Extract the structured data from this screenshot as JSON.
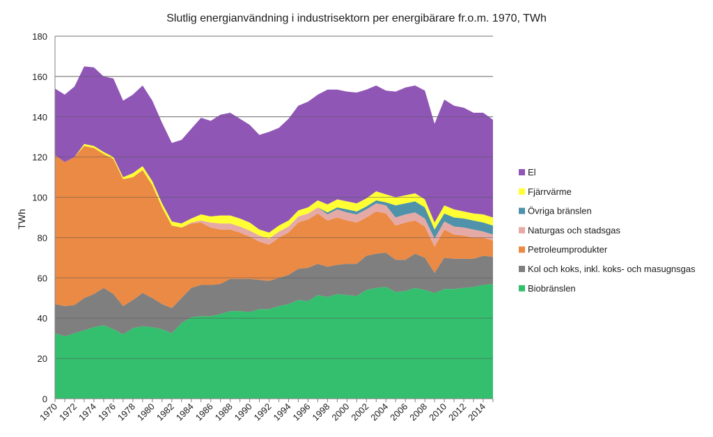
{
  "chart_data": {
    "type": "area",
    "stacked": true,
    "title": "Slutlig energianvändning i industrisektorn per energibärare fr.o.m. 1970, TWh",
    "xlabel": "",
    "ylabel": "TWh",
    "ylim": [
      0,
      180
    ],
    "yticks": [
      0,
      20,
      40,
      60,
      80,
      100,
      120,
      140,
      160,
      180
    ],
    "grid": true,
    "legend_position": "right",
    "x": [
      1970,
      1971,
      1972,
      1973,
      1974,
      1975,
      1976,
      1977,
      1978,
      1979,
      1980,
      1981,
      1982,
      1983,
      1984,
      1985,
      1986,
      1987,
      1988,
      1989,
      1990,
      1991,
      1992,
      1993,
      1994,
      1995,
      1996,
      1997,
      1998,
      1999,
      2000,
      2001,
      2002,
      2003,
      2004,
      2005,
      2006,
      2007,
      2008,
      2009,
      2010,
      2011,
      2012,
      2013,
      2014,
      2015
    ],
    "xtick_labels": [
      "1970",
      "1972",
      "1974",
      "1976",
      "1978",
      "1980",
      "1982",
      "1984",
      "1986",
      "1988",
      "1990",
      "1992",
      "1994",
      "1996",
      "1998",
      "2000",
      "2002",
      "2004",
      "2006",
      "2008",
      "2010",
      "2012",
      "2014"
    ],
    "series": [
      {
        "name": "Biobränslen",
        "color": "#33bf6e",
        "values": [
          32.5,
          31,
          32.5,
          34,
          35.5,
          36.5,
          34.5,
          32,
          35,
          36,
          35.5,
          34.5,
          32.5,
          37.5,
          40.5,
          41,
          41,
          42,
          43.5,
          43.5,
          43,
          44.5,
          44.5,
          46,
          47,
          49,
          48.5,
          51.5,
          50.5,
          52,
          51.5,
          51,
          54,
          55,
          55.5,
          53,
          53.5,
          55,
          54,
          52.5,
          54.5,
          54.5,
          55,
          55.5,
          56.5,
          57
        ]
      },
      {
        "name": "Kol och koks, inkl. koks- och masugnsgas",
        "color": "#7f7f7f",
        "values": [
          14.5,
          15,
          14,
          16,
          16.5,
          18.5,
          17.5,
          14,
          14,
          16.5,
          14.5,
          12.5,
          12.5,
          12.5,
          14.5,
          15.5,
          15.5,
          15,
          16,
          16,
          16.5,
          14.5,
          14,
          14,
          14.5,
          15.5,
          16.5,
          15.5,
          15,
          14.5,
          15.5,
          16,
          17,
          17,
          17,
          16,
          15.5,
          17,
          16,
          10,
          15.5,
          15,
          14.5,
          14,
          14.5,
          13.5
        ]
      },
      {
        "name": "Petroleumprodukter",
        "color": "#eb8a44",
        "values": [
          74,
          71.5,
          73.5,
          75.5,
          72.5,
          66.5,
          67,
          63,
          61,
          61,
          56,
          48,
          41,
          35,
          32,
          31,
          28.5,
          27,
          24.5,
          23,
          21,
          19,
          18,
          20,
          21,
          23,
          24,
          25,
          23,
          23.5,
          21.5,
          20.5,
          19,
          21,
          19.5,
          17,
          18.5,
          16.5,
          15.5,
          13,
          14,
          12,
          11.5,
          10.5,
          9,
          8
        ]
      },
      {
        "name": "Naturgas och stadsgas",
        "color": "#e6aaa6",
        "values": [
          0,
          0,
          0,
          0,
          0,
          0,
          0,
          0,
          0,
          0,
          0,
          0,
          0,
          0,
          0.5,
          1,
          2.5,
          3,
          3,
          3,
          3,
          3,
          3,
          3,
          3,
          3,
          3,
          3,
          3,
          4,
          4,
          4,
          4,
          4,
          4,
          4,
          4,
          4,
          4,
          4,
          4,
          4,
          4,
          4,
          3,
          3
        ]
      },
      {
        "name": "Övriga bränslen",
        "color": "#4f92aa",
        "values": [
          0,
          0,
          0,
          0,
          0,
          0,
          0,
          0,
          0,
          0,
          0,
          0,
          0,
          0,
          0,
          0,
          0,
          0,
          0,
          0,
          0,
          0,
          0,
          0,
          0,
          0,
          0,
          0,
          1,
          1,
          1.5,
          1.5,
          1.5,
          1.5,
          1.5,
          6,
          5.5,
          5.5,
          5.5,
          4.5,
          4,
          4.5,
          4.5,
          4.5,
          4.5,
          4.5
        ]
      },
      {
        "name": "Fjärrvärme",
        "color": "#ffff33",
        "values": [
          0,
          0,
          0,
          1,
          1,
          1,
          1,
          1,
          2,
          2,
          2,
          2,
          2,
          2,
          2,
          3,
          3,
          4,
          4,
          4,
          4,
          3,
          3,
          3,
          3,
          3,
          3,
          3.5,
          4,
          4,
          4,
          4,
          4,
          4.5,
          4,
          4,
          4,
          4,
          4,
          3.5,
          4,
          4,
          3.5,
          3.5,
          4,
          4
        ]
      },
      {
        "name": "El",
        "color": "#8f56b6",
        "values": [
          33,
          33.5,
          35,
          38.5,
          39,
          37.5,
          39,
          38,
          39,
          40,
          40,
          40,
          39,
          41.5,
          44.5,
          48,
          47.5,
          50,
          51,
          49.5,
          48.5,
          47,
          50,
          48.5,
          50.5,
          52,
          52.5,
          52.5,
          57,
          54.5,
          54.5,
          55,
          54,
          52.5,
          51.5,
          52.5,
          53.5,
          53.5,
          54,
          49,
          52.5,
          51.5,
          51.5,
          50,
          50.5,
          48.5
        ]
      }
    ],
    "legend_order": [
      "El",
      "Fjärrvärme",
      "Övriga bränslen",
      "Naturgas och stadsgas",
      "Petroleumprodukter",
      "Kol och koks, inkl. koks- och masugnsgas",
      "Biobränslen"
    ]
  }
}
